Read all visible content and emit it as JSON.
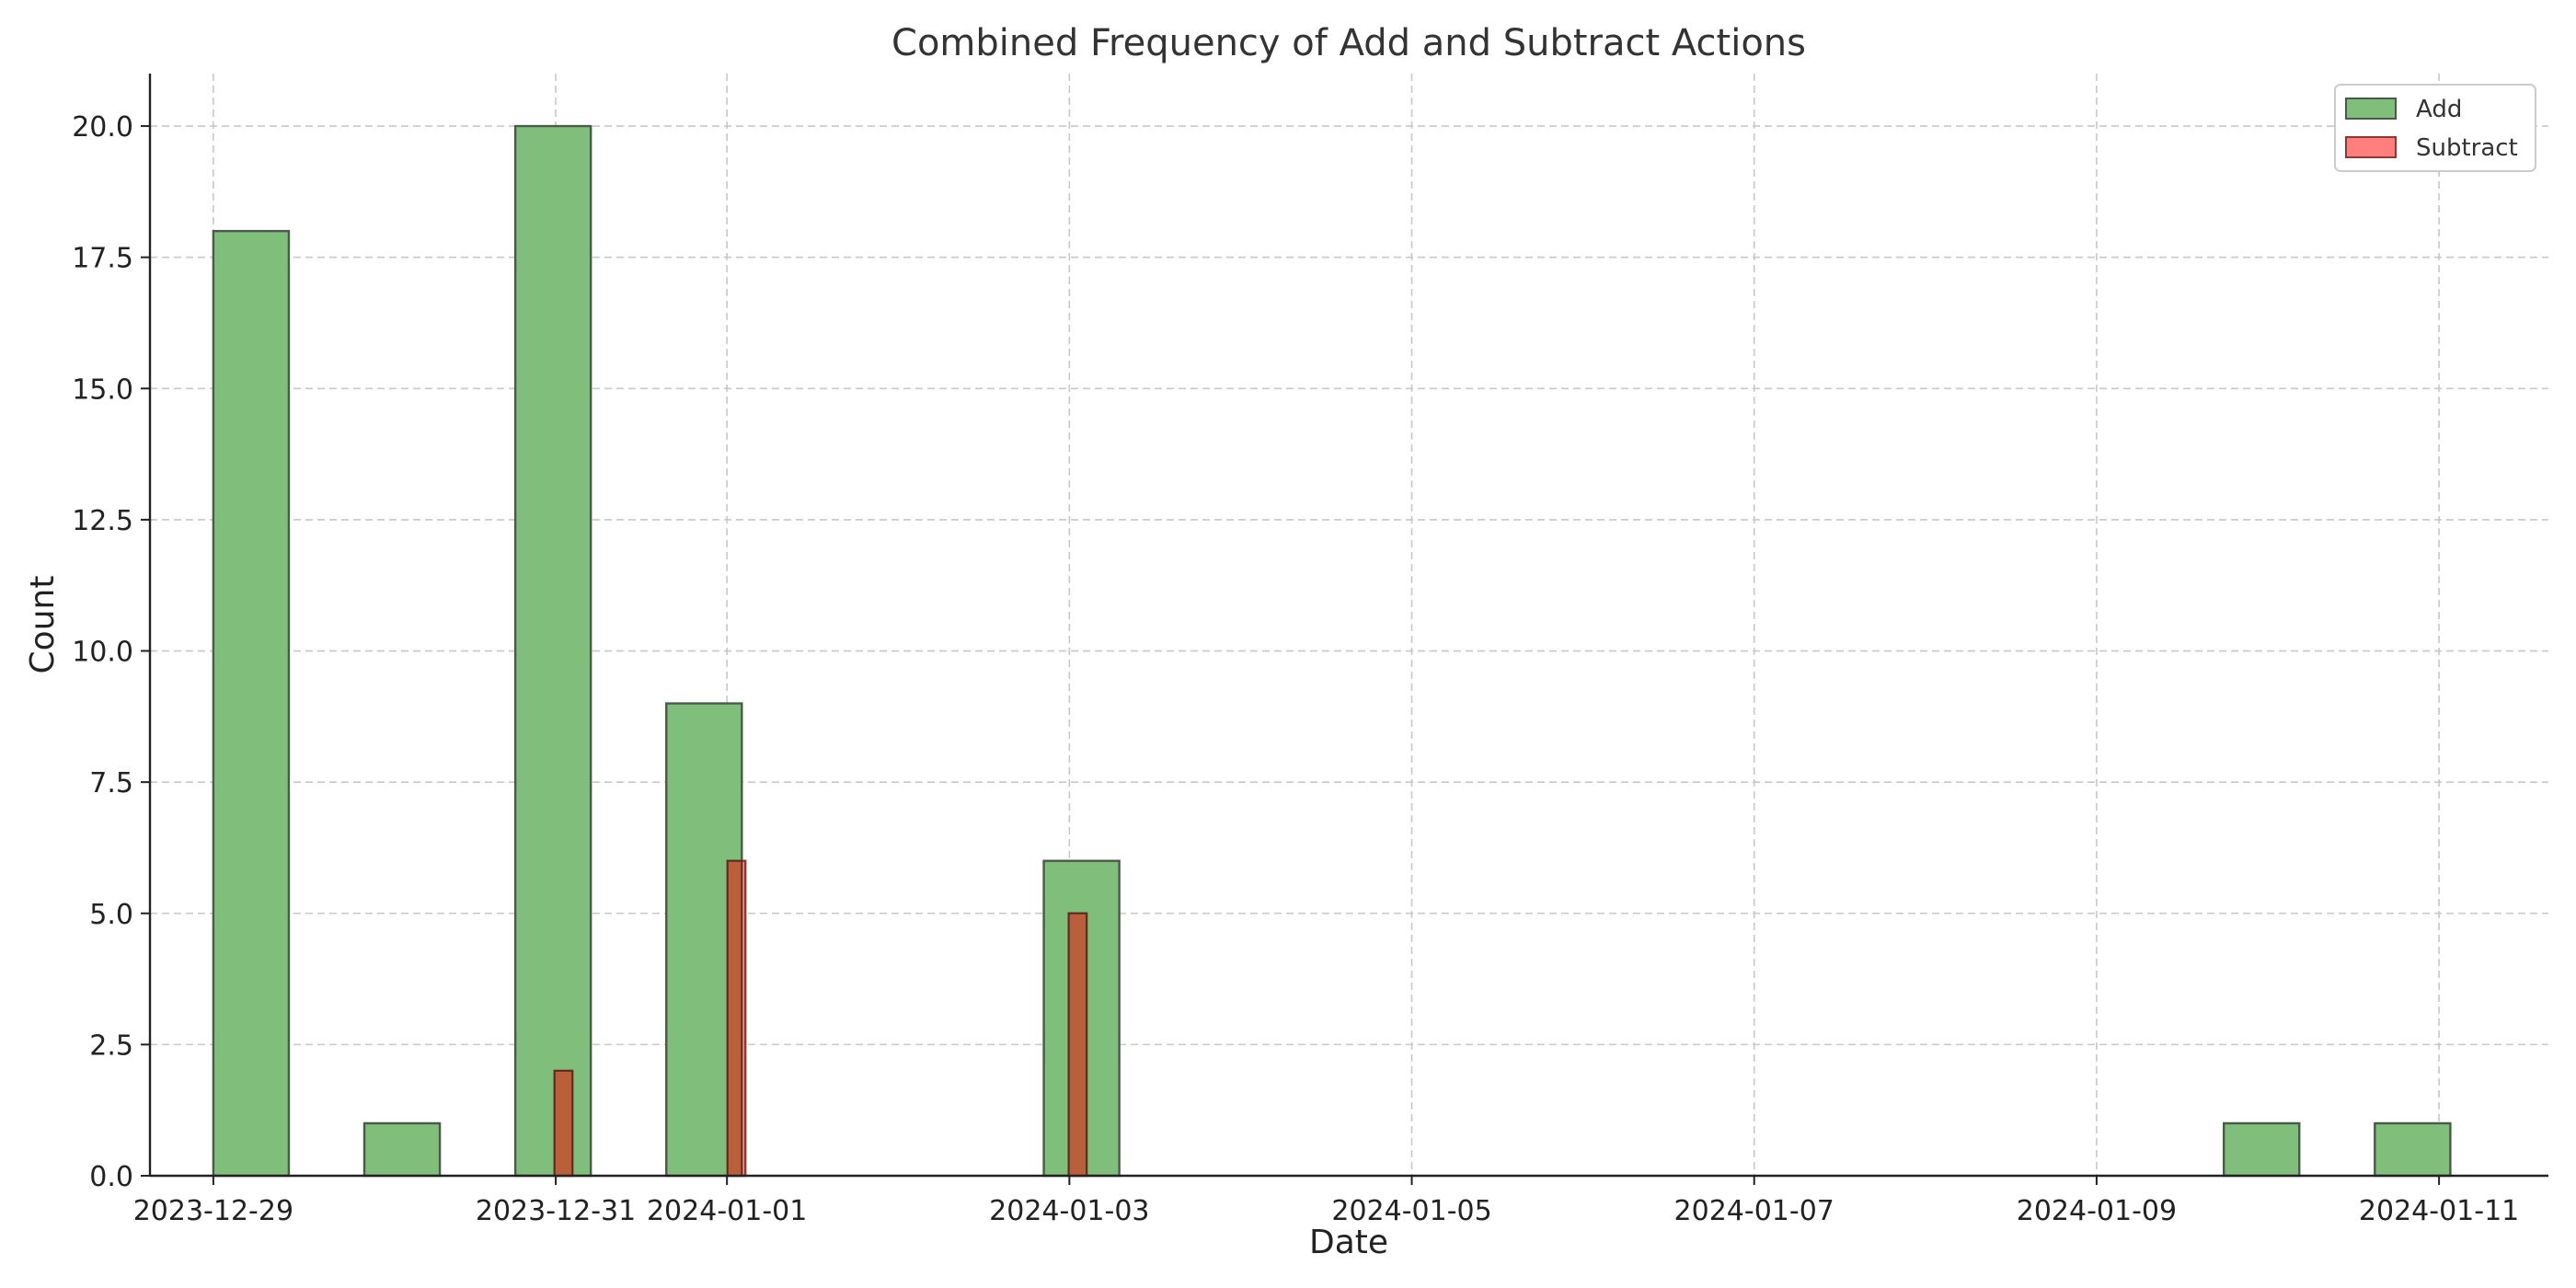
{
  "chart_data": {
    "type": "bar",
    "title": "Combined Frequency of Add and Subtract Actions",
    "xlabel": "Date",
    "ylabel": "Count",
    "xlim": [
      "2023-12-28T15:07",
      "2024-01-11T15:20"
    ],
    "ylim": [
      0,
      21
    ],
    "x_ticks": [
      "2023-12-29",
      "2023-12-31",
      "2024-01-01",
      "2024-01-03",
      "2024-01-05",
      "2024-01-07",
      "2024-01-09",
      "2024-01-11"
    ],
    "y_ticks": [
      "0.0",
      "2.5",
      "5.0",
      "7.5",
      "10.0",
      "12.5",
      "15.0",
      "17.5",
      "20.0"
    ],
    "grid": true,
    "legend": "top-right",
    "series": [
      {
        "name": "Add",
        "color": "#7fbf7b",
        "edge": "#4a5a48",
        "bins": [
          {
            "start": "2023-12-29T00:00",
            "end": "2023-12-29T10:35",
            "count": 18
          },
          {
            "start": "2023-12-29T21:10",
            "end": "2023-12-30T07:45",
            "count": 1
          },
          {
            "start": "2023-12-30T18:20",
            "end": "2023-12-31T04:55",
            "count": 20
          },
          {
            "start": "2023-12-31T15:30",
            "end": "2024-01-01T02:05",
            "count": 9
          },
          {
            "start": "2024-01-02T20:25",
            "end": "2024-01-03T07:00",
            "count": 6
          },
          {
            "start": "2024-01-09T17:50",
            "end": "2024-01-10T04:25",
            "count": 1
          },
          {
            "start": "2024-01-10T15:00",
            "end": "2024-01-11T01:35",
            "count": 1
          }
        ]
      },
      {
        "name": "Subtract",
        "color": "#ff7f7f",
        "edge": "#8a3a30",
        "bins": [
          {
            "start": "2023-12-30T23:50",
            "end": "2023-12-31T02:20",
            "count": 2
          },
          {
            "start": "2024-01-01T00:05",
            "end": "2024-01-01T02:35",
            "count": 6
          },
          {
            "start": "2024-01-02T23:55",
            "end": "2024-01-03T02:25",
            "count": 5
          }
        ]
      }
    ]
  }
}
